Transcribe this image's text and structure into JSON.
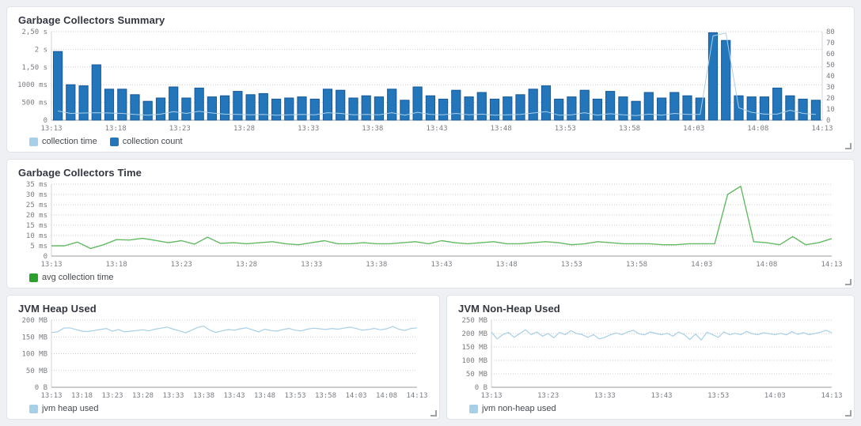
{
  "page": {
    "background": "#eef0f3",
    "panel_background": "#ffffff",
    "panel_border": "#e0e3ea"
  },
  "chart_data": [
    {
      "type": "bar",
      "title": "Garbage Collectors Summary",
      "legend": [
        {
          "label": "collection time",
          "color": "#a7d0e8"
        },
        {
          "label": "collection count",
          "color": "#2276b9"
        }
      ],
      "x_ticks": [
        "13:13",
        "13:18",
        "13:23",
        "13:28",
        "13:33",
        "13:38",
        "13:43",
        "13:48",
        "13:53",
        "13:58",
        "14:03",
        "14:08",
        "14:13"
      ],
      "left_axis": {
        "ticks": [
          "2,50 s",
          "2 s",
          "1,50 s",
          "1000 ms",
          "500 ms",
          "0"
        ],
        "max": 2500,
        "unit": "ms"
      },
      "right_axis": {
        "ticks": [
          "80",
          "70",
          "60",
          "50",
          "40",
          "30",
          "20",
          "10",
          "0"
        ],
        "max": 80,
        "unit": "count"
      },
      "series": [
        {
          "name": "collection count",
          "type": "bar",
          "axis": "right",
          "color": "#2276b9",
          "stroke": "#17599b",
          "values": [
            62,
            32,
            31,
            50,
            28,
            28,
            23,
            17,
            20,
            30,
            20,
            29,
            21,
            22,
            26,
            23,
            24,
            19,
            20,
            21,
            19,
            28,
            27,
            20,
            22,
            21,
            28,
            18,
            30,
            22,
            19,
            27,
            21,
            25,
            19,
            21,
            23,
            28,
            31,
            19,
            21,
            27,
            19,
            26,
            21,
            17,
            25,
            20,
            25,
            22,
            20,
            79,
            72,
            22,
            21,
            21,
            29,
            22,
            19,
            18
          ]
        },
        {
          "name": "collection time",
          "type": "line",
          "axis": "left",
          "align": "bar-center",
          "color": "#aacfe9",
          "width": 1,
          "values": [
            260,
            190,
            200,
            210,
            200,
            190,
            160,
            140,
            170,
            240,
            190,
            250,
            200,
            170,
            160,
            150,
            160,
            140,
            150,
            160,
            150,
            210,
            190,
            150,
            160,
            150,
            210,
            140,
            220,
            160,
            150,
            190,
            150,
            170,
            140,
            150,
            160,
            200,
            240,
            140,
            150,
            210,
            140,
            180,
            150,
            130,
            170,
            140,
            190,
            160,
            160,
            2380,
            2460,
            350,
            220,
            170,
            170,
            280,
            190,
            160
          ]
        }
      ]
    },
    {
      "type": "line",
      "title": "Garbage Collectors Time",
      "legend": [
        {
          "label": "avg collection time",
          "color": "#2ca02c"
        }
      ],
      "x_ticks": [
        "13:13",
        "13:18",
        "13:23",
        "13:28",
        "13:33",
        "13:38",
        "13:43",
        "13:48",
        "13:53",
        "13:58",
        "14:03",
        "14:08",
        "14:13"
      ],
      "left_axis": {
        "ticks": [
          "35 ms",
          "30 ms",
          "25 ms",
          "20 ms",
          "15 ms",
          "10 ms",
          "5 ms",
          "0"
        ],
        "max": 35,
        "unit": "ms"
      },
      "series": [
        {
          "name": "avg collection time",
          "type": "line",
          "axis": "left",
          "color": "#64b964",
          "width": 1.4,
          "values": [
            5,
            5,
            6.8,
            3.7,
            5.5,
            8,
            7.8,
            8.6,
            7.6,
            6.5,
            7.5,
            5.8,
            9.2,
            6.2,
            6.5,
            6,
            6.5,
            7,
            6,
            5.5,
            6.5,
            7.5,
            6,
            6,
            6.5,
            6,
            6,
            6.5,
            7,
            6,
            7.5,
            6.5,
            6,
            6.5,
            7,
            6,
            6,
            6.5,
            7,
            6.5,
            5.5,
            6,
            7,
            6.5,
            6,
            6,
            6,
            5.5,
            5.5,
            6,
            6,
            6,
            30,
            34,
            7,
            6.5,
            5.5,
            9.5,
            5.5,
            6.5,
            8.5
          ]
        }
      ]
    },
    {
      "type": "line",
      "title": "JVM Heap Used",
      "legend": [
        {
          "label": "jvm heap used",
          "color": "#a7cfe6"
        }
      ],
      "x_ticks": [
        "13:13",
        "13:18",
        "13:23",
        "13:28",
        "13:33",
        "13:38",
        "13:43",
        "13:48",
        "13:53",
        "13:58",
        "14:03",
        "14:08",
        "14:13"
      ],
      "left_axis": {
        "ticks": [
          "200 MB",
          "150 MB",
          "100 MB",
          "50 MB",
          "0 B"
        ],
        "max": 200,
        "unit": "MB"
      },
      "series": [
        {
          "name": "jvm heap used",
          "type": "line",
          "axis": "left",
          "color": "#a7cfe6",
          "width": 1.2,
          "values": [
            163,
            165,
            176,
            177,
            172,
            167,
            166,
            169,
            172,
            175,
            167,
            172,
            165,
            167,
            169,
            171,
            168,
            173,
            176,
            179,
            173,
            168,
            162,
            170,
            178,
            182,
            170,
            163,
            168,
            172,
            170,
            174,
            177,
            171,
            165,
            173,
            169,
            167,
            172,
            175,
            170,
            168,
            173,
            176,
            174,
            172,
            175,
            173,
            176,
            179,
            175,
            170,
            172,
            175,
            171,
            174,
            181,
            173,
            169,
            175,
            177
          ]
        }
      ]
    },
    {
      "type": "line",
      "title": "JVM Non-Heap Used",
      "legend": [
        {
          "label": "jvm non-heap used",
          "color": "#a7cfe6"
        }
      ],
      "x_ticks": [
        "13:13",
        "13:23",
        "13:33",
        "13:43",
        "13:53",
        "14:03",
        "14:13"
      ],
      "left_axis": {
        "ticks": [
          "250 MB",
          "200 MB",
          "150 MB",
          "100 MB",
          "50 MB",
          "0 B"
        ],
        "max": 250,
        "unit": "MB"
      },
      "series": [
        {
          "name": "jvm non-heap used",
          "type": "line",
          "axis": "left",
          "color": "#a7cfe6",
          "width": 1.2,
          "values": [
            205,
            180,
            196,
            204,
            186,
            200,
            214,
            196,
            206,
            190,
            200,
            184,
            204,
            196,
            211,
            200,
            196,
            186,
            196,
            180,
            186,
            196,
            202,
            196,
            206,
            212,
            199,
            195,
            206,
            200,
            196,
            201,
            190,
            206,
            196,
            178,
            198,
            176,
            205,
            196,
            186,
            206,
            196,
            201,
            196,
            208,
            199,
            196,
            203,
            199,
            196,
            201,
            195,
            207,
            197,
            203,
            196,
            200,
            205,
            212,
            203
          ]
        }
      ]
    }
  ]
}
